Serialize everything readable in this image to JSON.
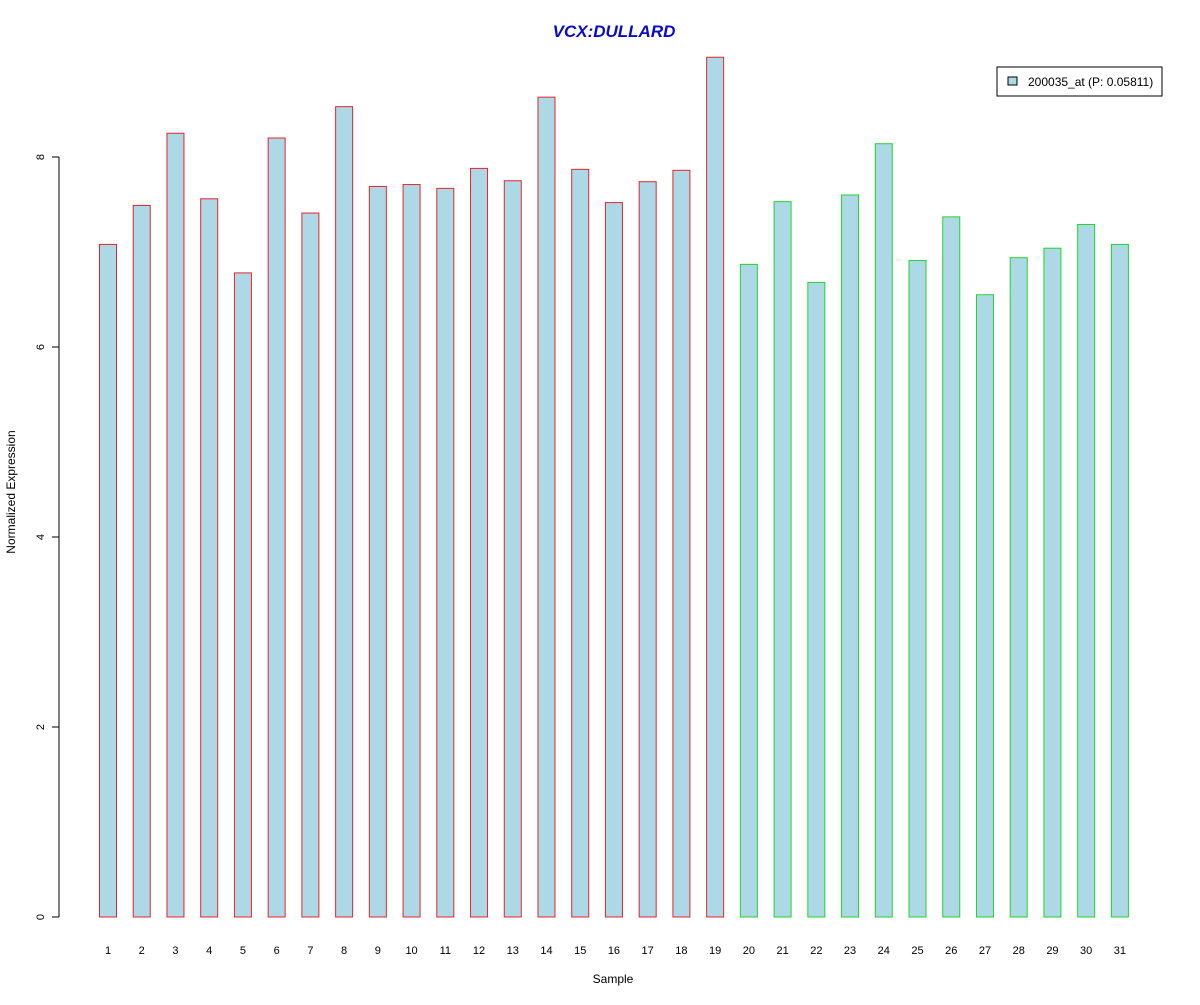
{
  "chart_data": {
    "type": "bar",
    "title": "VCX:DULLARD",
    "xlabel": "Sample",
    "ylabel": "Normalized Expression",
    "ylim": [
      0,
      9
    ],
    "yticks": [
      0,
      2,
      4,
      6,
      8
    ],
    "grid": false,
    "legend_position": "top-right",
    "categories": [
      "1",
      "2",
      "3",
      "4",
      "5",
      "6",
      "7",
      "8",
      "9",
      "10",
      "11",
      "12",
      "13",
      "14",
      "15",
      "16",
      "17",
      "18",
      "19",
      "20",
      "21",
      "22",
      "23",
      "24",
      "25",
      "26",
      "27",
      "28",
      "29",
      "30",
      "31"
    ],
    "series": [
      {
        "name": "200035_at (P: 0.05811)",
        "values": [
          7.08,
          7.49,
          8.25,
          7.56,
          6.78,
          8.2,
          7.41,
          8.53,
          7.69,
          7.71,
          7.67,
          7.88,
          7.75,
          8.63,
          7.87,
          7.52,
          7.74,
          7.86,
          9.05,
          6.87,
          7.53,
          6.68,
          7.6,
          8.14,
          6.91,
          7.37,
          6.55,
          6.94,
          7.04,
          7.29,
          7.08
        ]
      }
    ],
    "groups": [
      {
        "range": [
          1,
          19
        ],
        "outline_color": "#e8242b"
      },
      {
        "range": [
          20,
          31
        ],
        "outline_color": "#1fd62c"
      }
    ],
    "fill_color": "#add8e6",
    "title_color": "#0a0acd"
  }
}
